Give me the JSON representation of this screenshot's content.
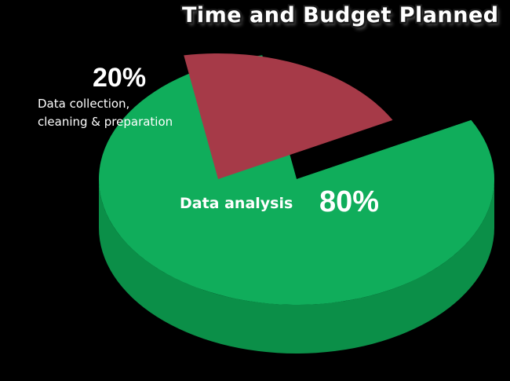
{
  "chart_data": {
    "type": "pie",
    "title": "Time and Budget Planned",
    "slices": [
      {
        "label_lines": [
          "Data collection,",
          "cleaning & preparation"
        ],
        "value": 20,
        "value_label": "20%",
        "color": "#a63a48",
        "exploded": true
      },
      {
        "label_lines": [
          "Data analysis"
        ],
        "value": 80,
        "value_label": "80%",
        "color": "#10ad5b",
        "exploded": false
      }
    ],
    "style": "3d-exploded"
  },
  "colors": {
    "background": "#000000",
    "analysis_top": "#10ad5b",
    "analysis_side": "#0b8f48",
    "collection_top": "#a63a48",
    "collection_side": "#8a2c38"
  }
}
